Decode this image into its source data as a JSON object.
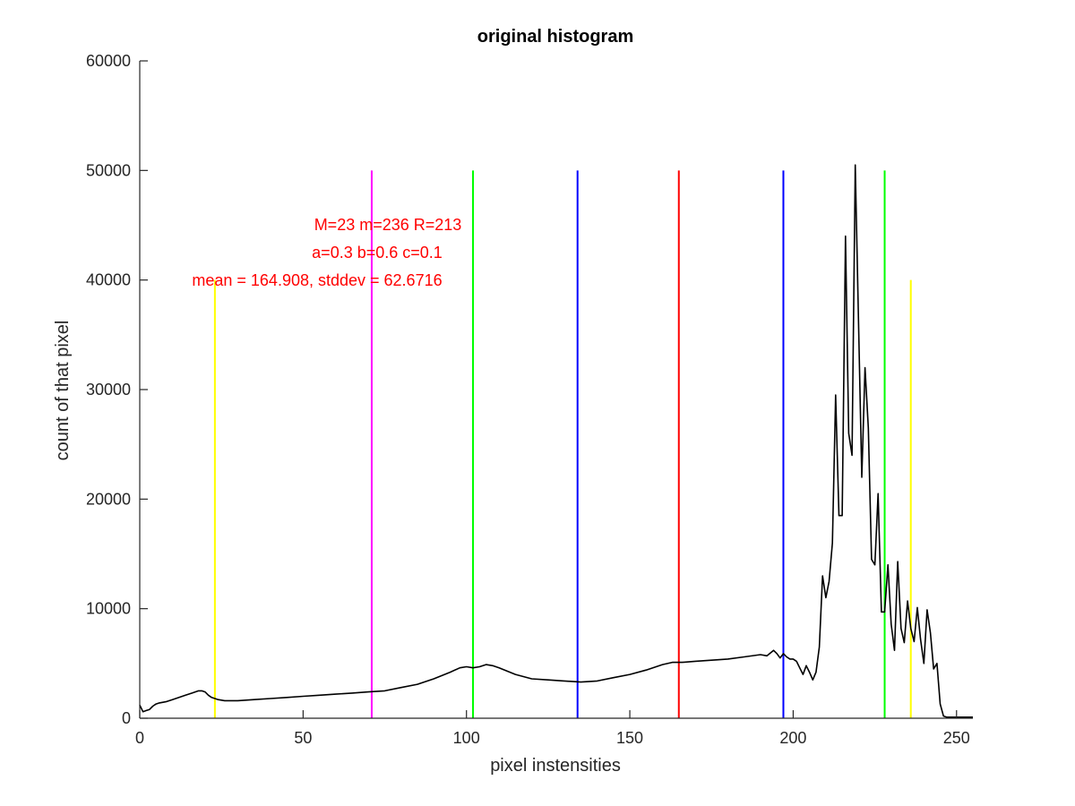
{
  "chart_data": {
    "type": "line",
    "title": "original histogram",
    "xlabel": "pixel instensities",
    "ylabel": "count of that pixel",
    "xlim": [
      0,
      255
    ],
    "ylim": [
      0,
      60000
    ],
    "xticks": [
      0,
      50,
      100,
      150,
      200,
      250
    ],
    "yticks": [
      0,
      10000,
      20000,
      30000,
      40000,
      50000,
      60000
    ],
    "grid": false,
    "annotations": [
      {
        "text": "M=23 m=236 R=213",
        "color": "#ff0000"
      },
      {
        "text": "a=0.3 b=0.6 c=0.1",
        "color": "#ff0000"
      },
      {
        "text": "mean = 164.908, stddev = 62.6716",
        "color": "#ff0000"
      }
    ],
    "vlines": [
      {
        "x": 23,
        "ymax": 40000,
        "color": "#ffff00"
      },
      {
        "x": 71,
        "ymax": 50000,
        "color": "#ff00ff"
      },
      {
        "x": 102,
        "ymax": 50000,
        "color": "#00ff00"
      },
      {
        "x": 134,
        "ymax": 50000,
        "color": "#0000ff"
      },
      {
        "x": 165,
        "ymax": 50000,
        "color": "#ff0000"
      },
      {
        "x": 197,
        "ymax": 50000,
        "color": "#0000ff"
      },
      {
        "x": 228,
        "ymax": 50000,
        "color": "#00ff00"
      },
      {
        "x": 236,
        "ymax": 40000,
        "color": "#ffff00"
      }
    ],
    "series": [
      {
        "color": "#000000",
        "x": [
          0,
          1,
          2,
          3,
          4,
          5,
          6,
          8,
          10,
          12,
          14,
          16,
          18,
          19,
          20,
          21,
          22,
          23,
          24,
          26,
          28,
          30,
          35,
          40,
          45,
          50,
          55,
          60,
          65,
          70,
          75,
          80,
          85,
          90,
          95,
          98,
          100,
          102,
          104,
          106,
          108,
          110,
          115,
          120,
          125,
          130,
          135,
          140,
          145,
          150,
          155,
          160,
          163,
          166,
          170,
          175,
          180,
          185,
          190,
          192,
          194,
          195,
          196,
          197,
          198,
          199,
          200,
          201,
          202,
          203,
          204,
          205,
          206,
          207,
          208,
          209,
          210,
          211,
          212,
          213,
          214,
          215,
          216,
          217,
          218,
          219,
          220,
          221,
          222,
          223,
          224,
          225,
          226,
          227,
          228,
          229,
          230,
          231,
          232,
          233,
          234,
          235,
          236,
          237,
          238,
          239,
          240,
          241,
          242,
          243,
          244,
          245,
          246,
          247,
          248,
          249,
          250,
          251,
          252,
          253,
          254,
          255
        ],
        "y": [
          1200,
          600,
          700,
          800,
          1100,
          1300,
          1400,
          1500,
          1700,
          1900,
          2100,
          2300,
          2500,
          2500,
          2400,
          2100,
          1900,
          1800,
          1700,
          1600,
          1600,
          1600,
          1700,
          1800,
          1900,
          2000,
          2100,
          2200,
          2300,
          2400,
          2500,
          2800,
          3100,
          3600,
          4200,
          4600,
          4700,
          4600,
          4700,
          4900,
          4800,
          4600,
          4000,
          3600,
          3500,
          3400,
          3300,
          3400,
          3700,
          4000,
          4400,
          4900,
          5100,
          5100,
          5200,
          5300,
          5400,
          5600,
          5800,
          5700,
          6200,
          5900,
          5500,
          5900,
          5600,
          5400,
          5400,
          5200,
          4600,
          4000,
          4800,
          4200,
          3500,
          4200,
          6500,
          13000,
          11000,
          12500,
          16000,
          29500,
          18500,
          18500,
          44000,
          26000,
          24000,
          50500,
          36000,
          22000,
          32000,
          26500,
          14500,
          14000,
          20500,
          9700,
          9700,
          14000,
          8600,
          6200,
          14300,
          8200,
          6900,
          10700,
          8200,
          7000,
          10100,
          7200,
          5000,
          9900,
          7800,
          4500,
          5000,
          1300,
          200,
          100,
          100,
          100,
          100,
          100,
          100,
          100,
          100,
          100
        ]
      }
    ]
  }
}
